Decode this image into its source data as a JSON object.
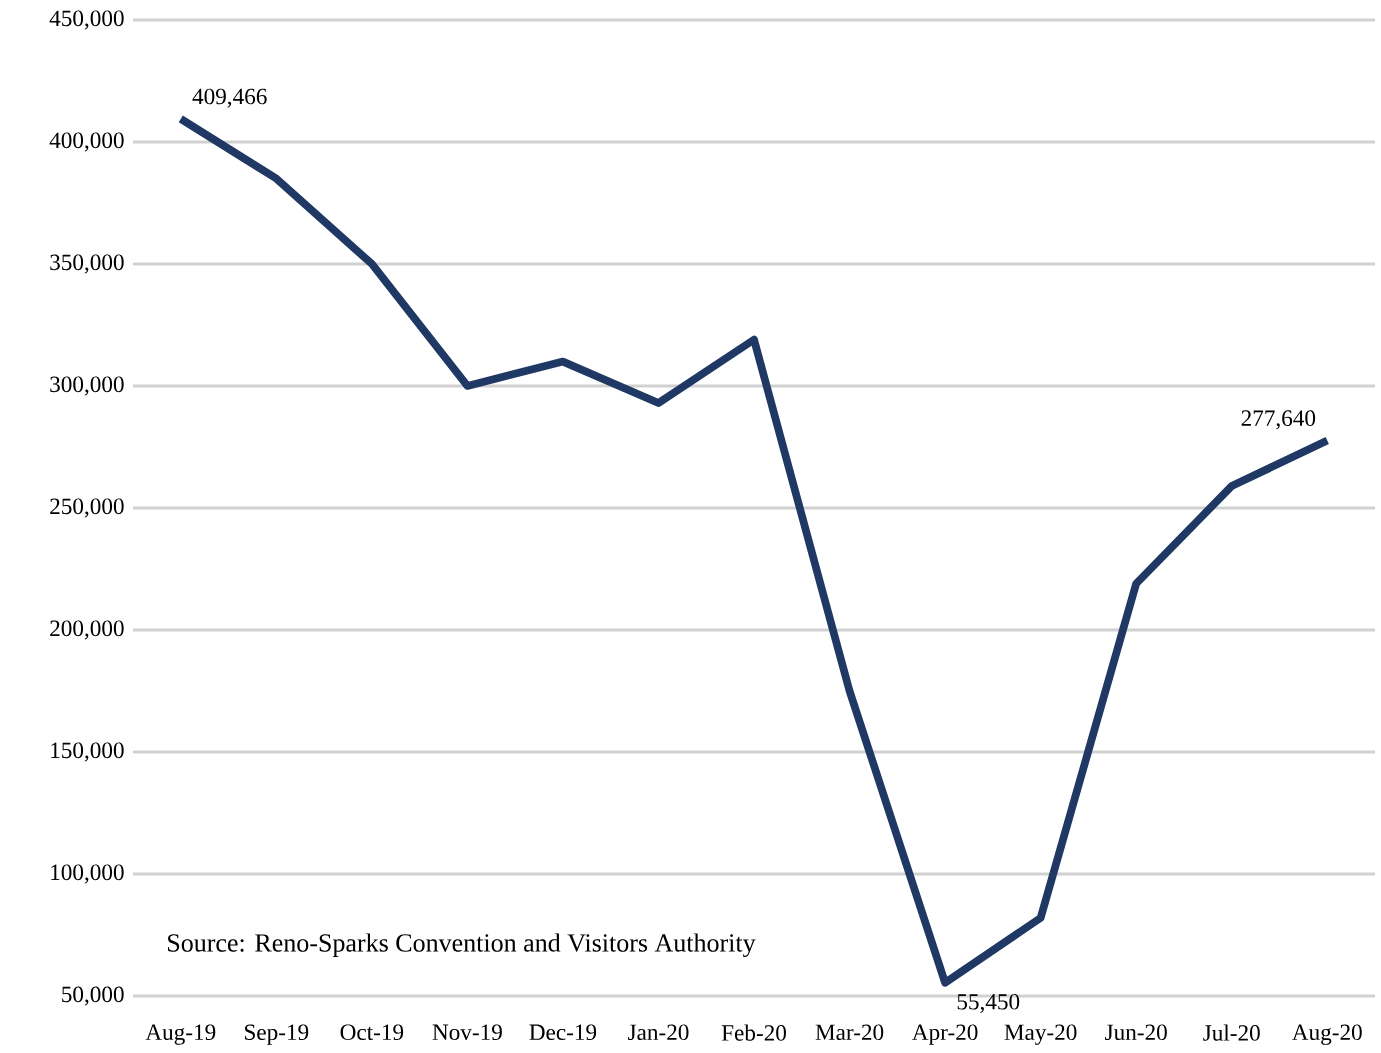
{
  "chart_data": {
    "type": "line",
    "categories": [
      "Aug-19",
      "Sep-19",
      "Oct-19",
      "Nov-19",
      "Dec-19",
      "Jan-20",
      "Feb-20",
      "Mar-20",
      "Apr-20",
      "May-20",
      "Jun-20",
      "Jul-20",
      "Aug-20"
    ],
    "series": [
      {
        "color": "#1f3864",
        "values": [
          409466,
          385000,
          350000,
          300000,
          310000,
          293000,
          319000,
          175000,
          55450,
          82000,
          219000,
          259000,
          277640
        ],
        "value_labels": [
          "409,466",
          null,
          null,
          null,
          null,
          null,
          null,
          null,
          "55,450",
          null,
          null,
          null,
          "277,640"
        ]
      }
    ],
    "ylim": [
      50000,
      450000
    ],
    "yticks": [
      {
        "value": 50000,
        "label": "50,000"
      },
      {
        "value": 100000,
        "label": "100,000"
      },
      {
        "value": 150000,
        "label": "150,000"
      },
      {
        "value": 200000,
        "label": "200,000"
      },
      {
        "value": 250000,
        "label": "250,000"
      },
      {
        "value": 300000,
        "label": "300,000"
      },
      {
        "value": 350000,
        "label": "350,000"
      },
      {
        "value": 400000,
        "label": "400,000"
      },
      {
        "value": 450000,
        "label": "450,000"
      }
    ],
    "grid": "y",
    "marker": "none",
    "line_style": "solid",
    "annotations": [
      "Source: Reno-Sparks Convention and Visitors Authority"
    ]
  }
}
